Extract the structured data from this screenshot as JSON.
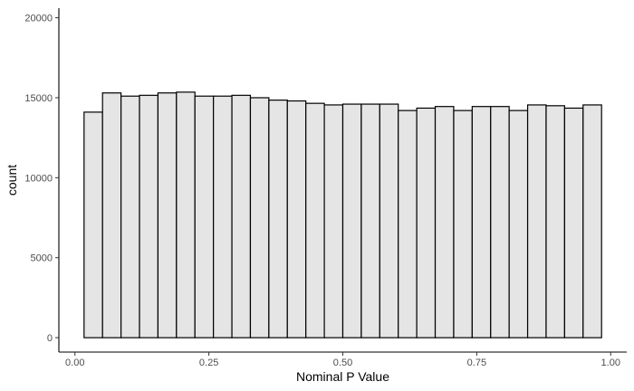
{
  "chart_data": {
    "type": "bar",
    "subtype": "histogram",
    "title": "",
    "xlabel": "Nominal P Value",
    "ylabel": "count",
    "xlim": [
      -0.03,
      1.03
    ],
    "ylim": [
      -900,
      20600
    ],
    "x_ticks": [
      0.0,
      0.25,
      0.5,
      0.75,
      1.0
    ],
    "x_tick_labels": [
      "0.00",
      "0.25",
      "0.50",
      "0.75",
      "1.00"
    ],
    "y_ticks": [
      0,
      5000,
      10000,
      15000,
      20000
    ],
    "y_tick_labels": [
      "0",
      "5000",
      "10000",
      "15000",
      "20000"
    ],
    "bin_range": [
      0.017,
      0.983
    ],
    "bin_count": 28,
    "values": [
      14100,
      15300,
      15100,
      15150,
      15300,
      15350,
      15100,
      15100,
      15150,
      15000,
      14850,
      14800,
      14650,
      14550,
      14600,
      14600,
      14600,
      14200,
      14350,
      14450,
      14200,
      14450,
      14450,
      14200,
      14550,
      14500,
      14350,
      14550
    ],
    "bar_fill": "#e5e5e5",
    "bar_stroke": "#000000",
    "grid": false,
    "legend": "none"
  }
}
